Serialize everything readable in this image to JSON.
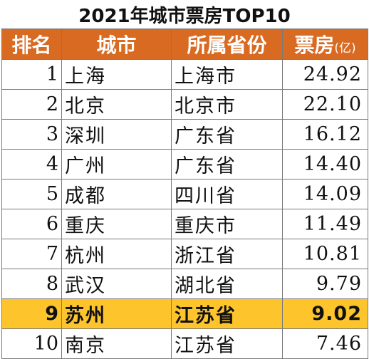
{
  "title": "2021年城市票房TOP10",
  "header": {
    "rank": "排名",
    "city": "城市",
    "province": "所属省份",
    "box_office": "票房",
    "box_office_unit": "(亿)"
  },
  "rows": [
    {
      "rank": "1",
      "city": "上海",
      "province": "上海市",
      "box_office": "24.92"
    },
    {
      "rank": "2",
      "city": "北京",
      "province": "北京市",
      "box_office": "22.10"
    },
    {
      "rank": "3",
      "city": "深圳",
      "province": "广东省",
      "box_office": "16.12"
    },
    {
      "rank": "4",
      "city": "广州",
      "province": "广东省",
      "box_office": "14.40"
    },
    {
      "rank": "5",
      "city": "成都",
      "province": "四川省",
      "box_office": "14.09"
    },
    {
      "rank": "6",
      "city": "重庆",
      "province": "重庆市",
      "box_office": "11.49"
    },
    {
      "rank": "7",
      "city": "杭州",
      "province": "浙江省",
      "box_office": "10.81"
    },
    {
      "rank": "8",
      "city": "武汉",
      "province": "湖北省",
      "box_office": "9.79"
    },
    {
      "rank": "9",
      "city": "苏州",
      "province": "江苏省",
      "box_office": "9.02"
    },
    {
      "rank": "10",
      "city": "南京",
      "province": "江苏省",
      "box_office": "7.46"
    }
  ],
  "highlight_row_rank": "9",
  "colors": {
    "header_bg": "#d86a22",
    "header_text": "#ffffff",
    "highlight_bg": "#fdc42c",
    "border": "#7a7a7a"
  }
}
